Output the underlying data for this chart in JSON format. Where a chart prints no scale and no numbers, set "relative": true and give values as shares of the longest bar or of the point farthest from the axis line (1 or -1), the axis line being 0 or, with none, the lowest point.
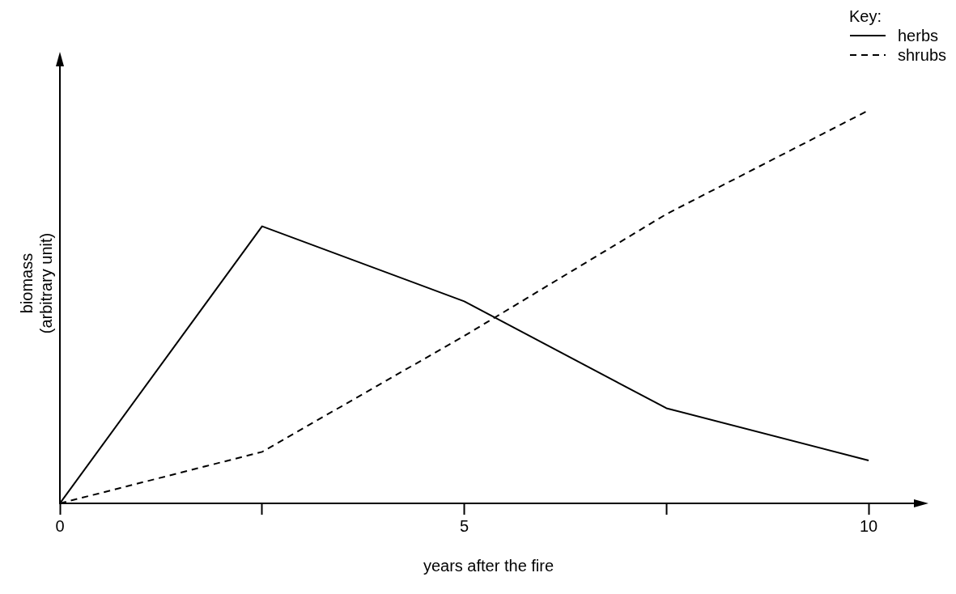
{
  "chart_data": {
    "type": "line",
    "relative": true,
    "xlabel": "years after the fire",
    "ylabel": "biomass\n(arbitrary unit)",
    "legend_title": "Key:",
    "legend": "top right",
    "grid": false,
    "marker": "none",
    "x": [
      0,
      2.5,
      5,
      7.5,
      10
    ],
    "xlim": [
      0,
      10.6
    ],
    "xticks": [
      0,
      {
        "value": 2.5,
        "label": null
      },
      5,
      {
        "value": 7.5,
        "label": null
      },
      10
    ],
    "tick_labels": "x",
    "series": [
      {
        "name": "herbs",
        "color": "#000000",
        "line_style": "solid",
        "values": [
          0,
          0.705,
          0.514,
          0.242,
          0.109
        ]
      },
      {
        "name": "shrubs",
        "color": "#000000",
        "line_style": "dashed",
        "values": [
          0,
          0.131,
          0.426,
          0.736,
          1
        ]
      }
    ]
  }
}
